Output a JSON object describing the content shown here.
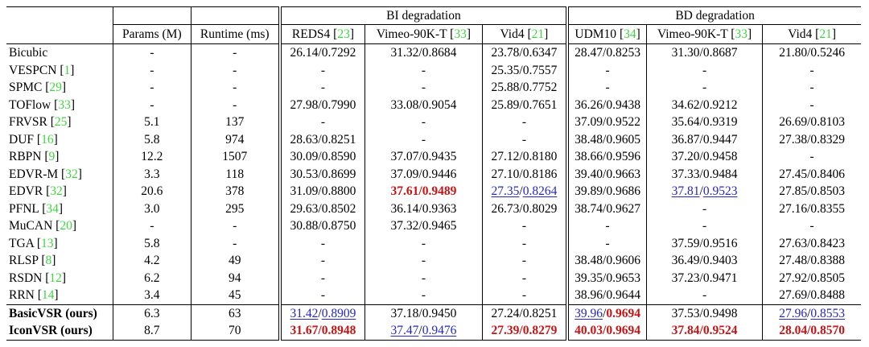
{
  "colors": {
    "citation": "#3ed63e",
    "best_red": "#c41414",
    "second_blue": "#2626c2",
    "border": "#000000"
  },
  "table": {
    "group_headers": [
      {
        "key": "bi-degradation",
        "label": "BI degradation"
      },
      {
        "key": "bd-degradation",
        "label": "BD degradation"
      }
    ],
    "col_headers": [
      {
        "key": "params",
        "label": "Params (M)",
        "cite": null
      },
      {
        "key": "runtime",
        "label": "Runtime (ms)",
        "cite": null
      },
      {
        "key": "reds4-bi",
        "label": "REDS4",
        "cite": "23"
      },
      {
        "key": "vimeo90kt-bi",
        "label": "Vimeo-90K-T",
        "cite": "33"
      },
      {
        "key": "vid4-bi",
        "label": "Vid4",
        "cite": "21"
      },
      {
        "key": "udm10-bd",
        "label": "UDM10",
        "cite": "34"
      },
      {
        "key": "vimeo90kt-bd",
        "label": "Vimeo-90K-T",
        "cite": "33"
      },
      {
        "key": "vid4-bd",
        "label": "Vid4",
        "cite": "21"
      }
    ],
    "placeholder": "-",
    "rows": [
      {
        "method": "Bicubic",
        "cite": null,
        "ours": false,
        "params": "-",
        "runtime": "-",
        "metrics": [
          {
            "p": "26.14",
            "s": "0.7292"
          },
          {
            "p": "31.32",
            "s": "0.8684"
          },
          {
            "p": "23.78",
            "s": "0.6347"
          },
          {
            "p": "28.47",
            "s": "0.8253"
          },
          {
            "p": "31.30",
            "s": "0.8687"
          },
          {
            "p": "21.80",
            "s": "0.5246"
          }
        ]
      },
      {
        "method": "VESPCN",
        "cite": "1",
        "ours": false,
        "params": "-",
        "runtime": "-",
        "metrics": [
          null,
          null,
          {
            "p": "25.35",
            "s": "0.7557"
          },
          null,
          null,
          null
        ]
      },
      {
        "method": "SPMC",
        "cite": "29",
        "ours": false,
        "params": "-",
        "runtime": "-",
        "metrics": [
          null,
          null,
          {
            "p": "25.88",
            "s": "0.7752"
          },
          null,
          null,
          null
        ]
      },
      {
        "method": "TOFlow",
        "cite": "33",
        "ours": false,
        "params": "-",
        "runtime": "-",
        "metrics": [
          {
            "p": "27.98",
            "s": "0.7990"
          },
          {
            "p": "33.08",
            "s": "0.9054"
          },
          {
            "p": "25.89",
            "s": "0.7651"
          },
          {
            "p": "36.26",
            "s": "0.9438"
          },
          {
            "p": "34.62",
            "s": "0.9212"
          },
          null
        ]
      },
      {
        "method": "FRVSR",
        "cite": "25",
        "ours": false,
        "params": "5.1",
        "runtime": "137",
        "metrics": [
          null,
          null,
          null,
          {
            "p": "37.09",
            "s": "0.9522"
          },
          {
            "p": "35.64",
            "s": "0.9319"
          },
          {
            "p": "26.69",
            "s": "0.8103"
          }
        ]
      },
      {
        "method": "DUF",
        "cite": "16",
        "ours": false,
        "params": "5.8",
        "runtime": "974",
        "metrics": [
          {
            "p": "28.63",
            "s": "0.8251"
          },
          null,
          null,
          {
            "p": "38.48",
            "s": "0.9605"
          },
          {
            "p": "36.87",
            "s": "0.9447"
          },
          {
            "p": "27.38",
            "s": "0.8329"
          }
        ]
      },
      {
        "method": "RBPN",
        "cite": "9",
        "ours": false,
        "params": "12.2",
        "runtime": "1507",
        "metrics": [
          {
            "p": "30.09",
            "s": "0.8590"
          },
          {
            "p": "37.07",
            "s": "0.9435"
          },
          {
            "p": "27.12",
            "s": "0.8180"
          },
          {
            "p": "38.66",
            "s": "0.9596"
          },
          {
            "p": "37.20",
            "s": "0.9458"
          },
          null
        ]
      },
      {
        "method": "EDVR-M",
        "cite": "32",
        "ours": false,
        "params": "3.3",
        "runtime": "118",
        "metrics": [
          {
            "p": "30.53",
            "s": "0.8699"
          },
          {
            "p": "37.09",
            "s": "0.9446"
          },
          {
            "p": "27.10",
            "s": "0.8186"
          },
          {
            "p": "39.40",
            "s": "0.9663"
          },
          {
            "p": "37.33",
            "s": "0.9484"
          },
          {
            "p": "27.45",
            "s": "0.8406"
          }
        ]
      },
      {
        "method": "EDVR",
        "cite": "32",
        "ours": false,
        "params": "20.6",
        "runtime": "378",
        "metrics": [
          {
            "p": "31.09",
            "s": "0.8800"
          },
          {
            "p": "37.61",
            "s": "0.9489",
            "pc": "best",
            "sc": "best"
          },
          {
            "p": "27.35",
            "s": "0.8264",
            "pc": "second",
            "sc": "second"
          },
          {
            "p": "39.89",
            "s": "0.9686"
          },
          {
            "p": "37.81",
            "s": "0.9523",
            "pc": "second",
            "sc": "second"
          },
          {
            "p": "27.85",
            "s": "0.8503"
          }
        ]
      },
      {
        "method": "PFNL",
        "cite": "34",
        "ours": false,
        "params": "3.0",
        "runtime": "295",
        "metrics": [
          {
            "p": "29.63",
            "s": "0.8502"
          },
          {
            "p": "36.14",
            "s": "0.9363"
          },
          {
            "p": "26.73",
            "s": "0.8029"
          },
          {
            "p": "38.74",
            "s": "0.9627"
          },
          null,
          {
            "p": "27.16",
            "s": "0.8355"
          }
        ]
      },
      {
        "method": "MuCAN",
        "cite": "20",
        "ours": false,
        "params": "-",
        "runtime": "-",
        "metrics": [
          {
            "p": "30.88",
            "s": "0.8750"
          },
          {
            "p": "37.32",
            "s": "0.9465"
          },
          null,
          null,
          null,
          null
        ]
      },
      {
        "method": "TGA",
        "cite": "13",
        "ours": false,
        "params": "5.8",
        "runtime": "-",
        "metrics": [
          null,
          null,
          null,
          null,
          {
            "p": "37.59",
            "s": "0.9516"
          },
          {
            "p": "27.63",
            "s": "0.8423"
          }
        ]
      },
      {
        "method": "RLSP",
        "cite": "8",
        "ours": false,
        "params": "4.2",
        "runtime": "49",
        "metrics": [
          null,
          null,
          null,
          {
            "p": "38.48",
            "s": "0.9606"
          },
          {
            "p": "36.49",
            "s": "0.9403"
          },
          {
            "p": "27.48",
            "s": "0.8388"
          }
        ]
      },
      {
        "method": "RSDN",
        "cite": "12",
        "ours": false,
        "params": "6.2",
        "runtime": "94",
        "metrics": [
          null,
          null,
          null,
          {
            "p": "39.35",
            "s": "0.9653"
          },
          {
            "p": "37.23",
            "s": "0.9471"
          },
          {
            "p": "27.92",
            "s": "0.8505"
          }
        ]
      },
      {
        "method": "RRN",
        "cite": "14",
        "ours": false,
        "params": "3.4",
        "runtime": "45",
        "metrics": [
          null,
          null,
          null,
          {
            "p": "38.96",
            "s": "0.9644"
          },
          null,
          {
            "p": "27.69",
            "s": "0.8488"
          }
        ]
      },
      {
        "method": "BasicVSR (ours)",
        "cite": null,
        "ours": true,
        "params": "6.3",
        "runtime": "63",
        "metrics": [
          {
            "p": "31.42",
            "s": "0.8909",
            "pc": "second",
            "sc": "second"
          },
          {
            "p": "37.18",
            "s": "0.9450"
          },
          {
            "p": "27.24",
            "s": "0.8251"
          },
          {
            "p": "39.96",
            "s": "0.9694",
            "pc": "second",
            "sc": "best"
          },
          {
            "p": "37.53",
            "s": "0.9498"
          },
          {
            "p": "27.96",
            "s": "0.8553",
            "pc": "second",
            "sc": "second"
          }
        ]
      },
      {
        "method": "IconVSR (ours)",
        "cite": null,
        "ours": true,
        "params": "8.7",
        "runtime": "70",
        "metrics": [
          {
            "p": "31.67",
            "s": "0.8948",
            "pc": "best",
            "sc": "best"
          },
          {
            "p": "37.47",
            "s": "0.9476",
            "pc": "second",
            "sc": "second"
          },
          {
            "p": "27.39",
            "s": "0.8279",
            "pc": "best",
            "sc": "best"
          },
          {
            "p": "40.03",
            "s": "0.9694",
            "pc": "best",
            "sc": "best"
          },
          {
            "p": "37.84",
            "s": "0.9524",
            "pc": "best",
            "sc": "best"
          },
          {
            "p": "28.04",
            "s": "0.8570",
            "pc": "best",
            "sc": "best"
          }
        ]
      }
    ]
  }
}
